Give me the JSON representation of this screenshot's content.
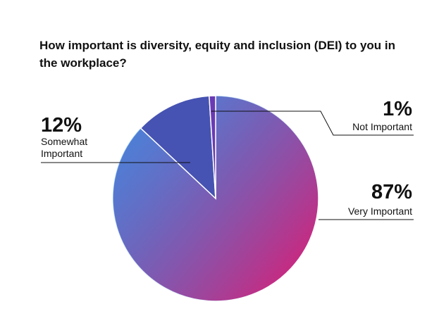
{
  "chart_data": {
    "type": "pie",
    "title": "How important is diversity, equity and inclusion (DEI) to you in the workplace?",
    "categories": [
      "Very Important",
      "Somewhat Important",
      "Not Important"
    ],
    "values": [
      87,
      12,
      1
    ],
    "labels": [
      "87%",
      "12%",
      "1%"
    ],
    "label_lines": [
      [
        "Very Important"
      ],
      [
        "Somewhat",
        "Important"
      ],
      [
        "Not Important"
      ]
    ],
    "colors": {
      "very_important_start": "#5a7fd6",
      "very_important_mid": "#8f4fa6",
      "very_important_end": "#d81f76",
      "very_important_left": "#2e8fe6",
      "somewhat_important": "#4653b2",
      "not_important": "#6a3ab5",
      "leader_line": "#111111",
      "slice_border": "#ffffff"
    },
    "legend": "none"
  }
}
